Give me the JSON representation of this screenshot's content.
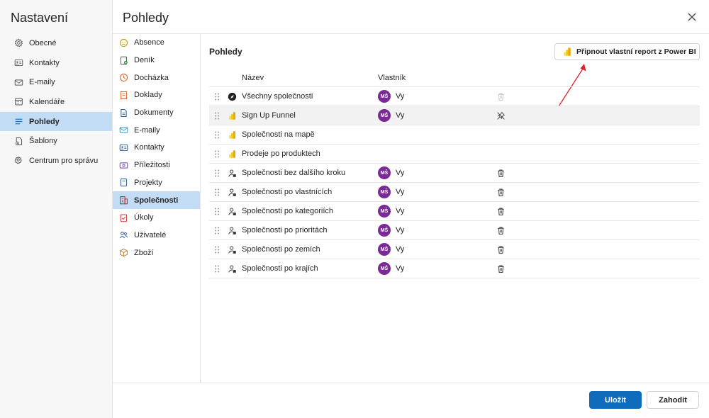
{
  "settings": {
    "title": "Nastavení",
    "items": [
      {
        "label": "Obecné",
        "icon": "gear-icon"
      },
      {
        "label": "Kontakty",
        "icon": "contact-card-icon"
      },
      {
        "label": "E-maily",
        "icon": "mail-icon"
      },
      {
        "label": "Kalendáře",
        "icon": "calendar-icon"
      },
      {
        "label": "Pohledy",
        "icon": "list-icon",
        "active": true
      },
      {
        "label": "Šablony",
        "icon": "template-icon"
      },
      {
        "label": "Centrum pro správu",
        "icon": "admin-gear-icon"
      }
    ]
  },
  "page": {
    "title": "Pohledy"
  },
  "categories": [
    {
      "label": "Absence",
      "icon": "smiley-icon"
    },
    {
      "label": "Deník",
      "icon": "journal-icon"
    },
    {
      "label": "Docházka",
      "icon": "clock-icon"
    },
    {
      "label": "Doklady",
      "icon": "receipt-icon"
    },
    {
      "label": "Dokumenty",
      "icon": "document-icon"
    },
    {
      "label": "E-maily",
      "icon": "mail-icon"
    },
    {
      "label": "Kontakty",
      "icon": "contact-card-icon"
    },
    {
      "label": "Příležitosti",
      "icon": "opportunity-icon"
    },
    {
      "label": "Projekty",
      "icon": "project-icon"
    },
    {
      "label": "Společnosti",
      "icon": "building-icon",
      "active": true
    },
    {
      "label": "Úkoly",
      "icon": "task-icon"
    },
    {
      "label": "Uživatelé",
      "icon": "people-icon"
    },
    {
      "label": "Zboží",
      "icon": "box-icon"
    }
  ],
  "main": {
    "section_title": "Pohledy",
    "pin_button": "Připnout vlastní report z Power BI",
    "columns": {
      "name": "Název",
      "owner": "Vlastník"
    },
    "rows": [
      {
        "name": "Všechny společnosti",
        "type": "compass",
        "avatar": "MŠ",
        "owner": "Vy",
        "action": "delete-disabled"
      },
      {
        "name": "Sign Up Funnel",
        "type": "powerbi",
        "avatar": "MŠ",
        "owner": "Vy",
        "action": "unpin"
      },
      {
        "name": "Společnosti na mapě",
        "type": "powerbi",
        "avatar": "",
        "owner": "",
        "action": "none"
      },
      {
        "name": "Prodeje po produktech",
        "type": "powerbi",
        "avatar": "",
        "owner": "",
        "action": "none"
      },
      {
        "name": "Společnosti bez dalšího kroku",
        "type": "person",
        "avatar": "MŠ",
        "owner": "Vy",
        "action": "delete"
      },
      {
        "name": "Společnosti po vlastnících",
        "type": "person",
        "avatar": "MŠ",
        "owner": "Vy",
        "action": "delete"
      },
      {
        "name": "Společnosti po kategoriích",
        "type": "person",
        "avatar": "MŠ",
        "owner": "Vy",
        "action": "delete"
      },
      {
        "name": "Společnosti po prioritách",
        "type": "person",
        "avatar": "MŠ",
        "owner": "Vy",
        "action": "delete"
      },
      {
        "name": "Společnosti po zemích",
        "type": "person",
        "avatar": "MŠ",
        "owner": "Vy",
        "action": "delete"
      },
      {
        "name": "Společnosti po krajích",
        "type": "person",
        "avatar": "MŠ",
        "owner": "Vy",
        "action": "delete"
      }
    ]
  },
  "footer": {
    "save": "Uložit",
    "discard": "Zahodit"
  },
  "colors": {
    "accent": "#0f6cbd",
    "selected": "#c2dcf6",
    "avatar": "#7a2a95",
    "annotation": "#e0202a",
    "powerbi": "#f2c811"
  }
}
